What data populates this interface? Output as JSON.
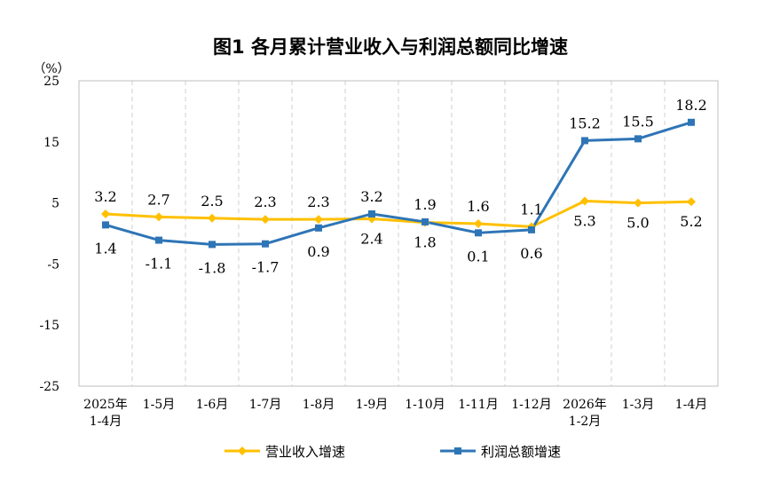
{
  "chart_data": {
    "type": "line",
    "title": "图1  各月累计营业收入与利润总额同比增速",
    "ylabel": "（%）",
    "ylim": [
      -25,
      25
    ],
    "yticks": [
      25,
      15,
      5,
      -5,
      -15,
      -25
    ],
    "categories": [
      [
        "2025年",
        "1-4月"
      ],
      [
        "1-5月"
      ],
      [
        "1-6月"
      ],
      [
        "1-7月"
      ],
      [
        "1-8月"
      ],
      [
        "1-9月"
      ],
      [
        "1-10月"
      ],
      [
        "1-11月"
      ],
      [
        "1-12月"
      ],
      [
        "2026年",
        "1-2月"
      ],
      [
        "1-3月"
      ],
      [
        "1-4月"
      ]
    ],
    "series": [
      {
        "name": "营业收入增速",
        "color": "#FFC000",
        "marker": "diamond",
        "values": [
          3.2,
          2.7,
          2.5,
          2.3,
          2.3,
          2.4,
          1.8,
          1.6,
          1.1,
          5.3,
          5.0,
          5.2
        ],
        "labels": [
          "3.2",
          "2.7",
          "2.5",
          "2.3",
          "2.3",
          "2.4",
          "1.8",
          "1.6",
          "1.1",
          "5.3",
          "5.0",
          "5.2"
        ]
      },
      {
        "name": "利润总额增速",
        "color": "#2E75B6",
        "marker": "square",
        "values": [
          1.4,
          -1.1,
          -1.8,
          -1.7,
          0.9,
          3.2,
          1.9,
          0.1,
          0.6,
          15.2,
          15.5,
          18.2
        ],
        "labels": [
          "1.4",
          "-1.1",
          "-1.8",
          "-1.7",
          "0.9",
          "3.2",
          "1.9",
          "0.1",
          "0.6",
          "15.2",
          "15.5",
          "18.2"
        ]
      }
    ],
    "grid": "vertical-dashed",
    "legend": "bottom"
  }
}
